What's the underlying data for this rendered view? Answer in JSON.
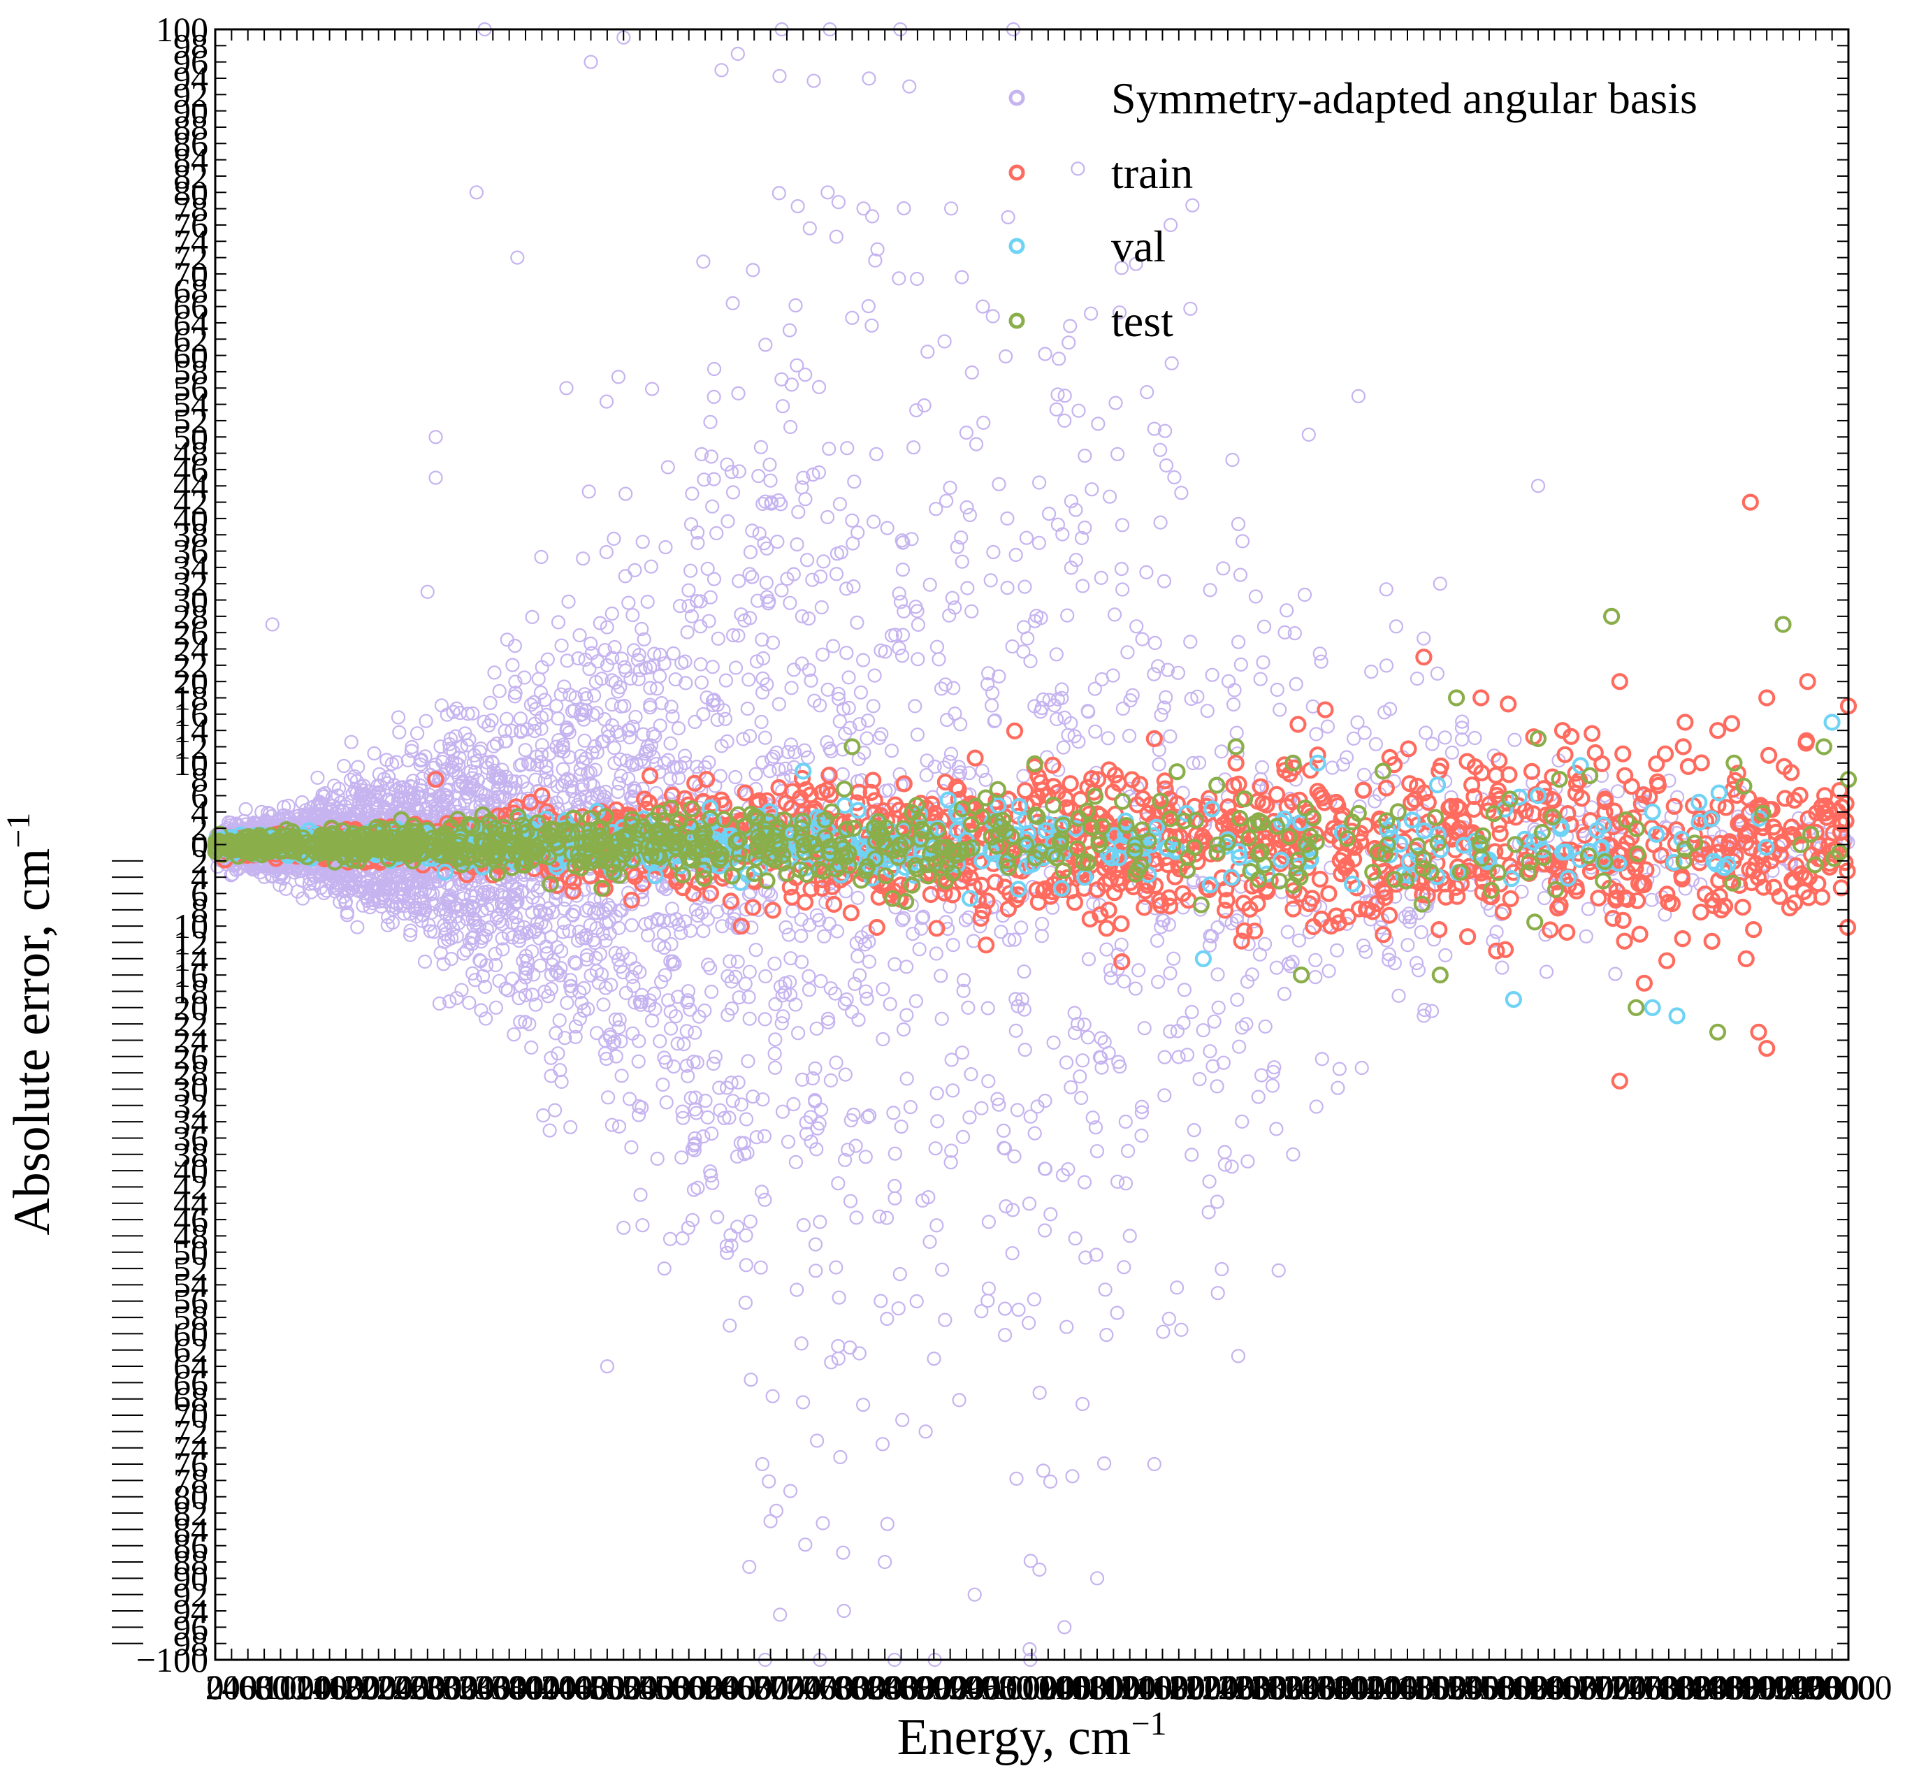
{
  "chart_data": {
    "type": "scatter",
    "title": "",
    "xlabel": "Energy, cm",
    "xlabel_exponent": "−1",
    "ylabel": "Absolute error, cm",
    "ylabel_exponent": "−1",
    "xlim": [
      0,
      20000
    ],
    "ylim": [
      -100,
      100
    ],
    "xticks_major_step": 200,
    "yticks_major_step": 2,
    "ytick_label_min": "−100",
    "grid": false,
    "legend_position": "top-right",
    "series": [
      {
        "name": "Symmetry-adapted angular basis",
        "color": "#c6b4f0",
        "marker": "open-circle",
        "description_of_spread": "error envelope grows with energy",
        "envelope": [
          [
            0,
            2
          ],
          [
            1000,
            5
          ],
          [
            2000,
            10
          ],
          [
            3000,
            18
          ],
          [
            4000,
            28
          ],
          [
            5000,
            40
          ],
          [
            6000,
            60
          ],
          [
            7000,
            85
          ],
          [
            8000,
            100
          ],
          [
            10000,
            100
          ],
          [
            11000,
            80
          ],
          [
            12000,
            60
          ],
          [
            13000,
            45
          ],
          [
            14000,
            35
          ],
          [
            15000,
            25
          ],
          [
            16000,
            18
          ],
          [
            17000,
            12
          ],
          [
            18000,
            8
          ],
          [
            19000,
            5
          ],
          [
            20000,
            3
          ]
        ],
        "points": [
          [
            700,
            27
          ],
          [
            2600,
            31
          ],
          [
            2700,
            45
          ],
          [
            2700,
            50
          ],
          [
            3200,
            80
          ],
          [
            3300,
            100
          ],
          [
            3700,
            72
          ],
          [
            4300,
            56
          ],
          [
            4600,
            96
          ],
          [
            5000,
            99
          ],
          [
            6200,
            95
          ],
          [
            6400,
            97
          ],
          [
            7500,
            80
          ],
          [
            8500,
            93
          ],
          [
            9400,
            66
          ],
          [
            9700,
            40
          ],
          [
            10400,
            52
          ],
          [
            11500,
            51
          ],
          [
            11700,
            76
          ],
          [
            14000,
            55
          ],
          [
            15000,
            32
          ],
          [
            16200,
            44
          ],
          [
            5000,
            -47
          ],
          [
            5500,
            -52
          ],
          [
            6300,
            -59
          ],
          [
            6700,
            -76
          ],
          [
            7700,
            -94
          ],
          [
            8200,
            -88
          ],
          [
            9300,
            -92
          ],
          [
            10400,
            -96
          ],
          [
            10800,
            -90
          ],
          [
            11500,
            -76
          ],
          [
            11200,
            -48
          ],
          [
            13200,
            -38
          ],
          [
            14800,
            -21
          ],
          [
            4800,
            -64
          ],
          [
            6800,
            -83
          ],
          [
            8700,
            -72
          ]
        ]
      },
      {
        "name": "train",
        "color": "#ff6b5e",
        "marker": "open-circle",
        "envelope": [
          [
            0,
            1
          ],
          [
            2000,
            2
          ],
          [
            4000,
            4
          ],
          [
            6000,
            6
          ],
          [
            8000,
            8
          ],
          [
            10000,
            9
          ],
          [
            12000,
            10
          ],
          [
            14000,
            11
          ],
          [
            16000,
            12
          ],
          [
            18000,
            12
          ],
          [
            20000,
            12
          ]
        ],
        "points": [
          [
            2700,
            8
          ],
          [
            4000,
            6
          ],
          [
            11500,
            13
          ],
          [
            12500,
            10
          ],
          [
            13500,
            11
          ],
          [
            14800,
            23
          ],
          [
            15500,
            18
          ],
          [
            16500,
            14
          ],
          [
            17200,
            20
          ],
          [
            18000,
            15
          ],
          [
            18400,
            14
          ],
          [
            18800,
            42
          ],
          [
            19000,
            18
          ],
          [
            19500,
            20
          ],
          [
            20000,
            17
          ],
          [
            17500,
            -17
          ],
          [
            18900,
            -23
          ],
          [
            19000,
            -25
          ],
          [
            17200,
            -29
          ]
        ]
      },
      {
        "name": "val",
        "color": "#6fd3f5",
        "marker": "open-circle",
        "envelope": [
          [
            0,
            1
          ],
          [
            4000,
            3
          ],
          [
            8000,
            5
          ],
          [
            12000,
            6
          ],
          [
            16000,
            7
          ],
          [
            20000,
            8
          ]
        ],
        "points": [
          [
            7200,
            9
          ],
          [
            13500,
            10
          ],
          [
            16200,
            6
          ],
          [
            17600,
            4
          ],
          [
            19800,
            15
          ],
          [
            12100,
            -14
          ],
          [
            15900,
            -19
          ],
          [
            17600,
            -20
          ],
          [
            17900,
            -21
          ]
        ]
      },
      {
        "name": "test",
        "color": "#8aae4a",
        "marker": "open-circle",
        "envelope": [
          [
            0,
            1
          ],
          [
            4000,
            3
          ],
          [
            8000,
            5
          ],
          [
            12000,
            7
          ],
          [
            16000,
            8
          ],
          [
            20000,
            9
          ]
        ],
        "points": [
          [
            7800,
            12
          ],
          [
            12500,
            12
          ],
          [
            13200,
            10
          ],
          [
            14300,
            9
          ],
          [
            15200,
            18
          ],
          [
            16200,
            13
          ],
          [
            17100,
            28
          ],
          [
            18600,
            10
          ],
          [
            19200,
            27
          ],
          [
            19700,
            12
          ],
          [
            20000,
            8
          ],
          [
            13300,
            -16
          ],
          [
            15000,
            -16
          ],
          [
            17400,
            -20
          ],
          [
            18400,
            -23
          ]
        ]
      }
    ]
  }
}
